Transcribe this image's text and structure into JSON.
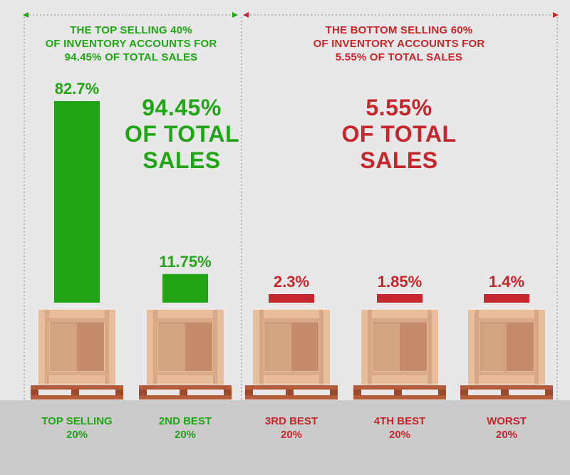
{
  "colors": {
    "good": "#21a517",
    "bad": "#c4272d",
    "crate_frame": "#e8bd9a",
    "crate_panel_light": "#d1a47f",
    "crate_panel_dark": "#c58b6b",
    "pallet": "#b45b3a",
    "background": "#e8e8e8",
    "floor": "#cbcbcb"
  },
  "header": {
    "left": [
      "THE TOP SELLING 40%",
      "OF INVENTORY ACCOUNTS FOR",
      "94.45% OF TOTAL SALES"
    ],
    "right": [
      "THE BOTTOM SELLING 60%",
      "OF INVENTORY ACCOUNTS FOR",
      "5.55% OF TOTAL SALES"
    ]
  },
  "callouts": {
    "left": [
      "94.45%",
      "OF TOTAL",
      "SALES"
    ],
    "right": [
      "5.55%",
      "OF TOTAL",
      "SALES"
    ]
  },
  "chart_data": {
    "type": "bar",
    "categories": [
      "TOP SELLING\n20%",
      "2ND BEST\n20%",
      "3RD BEST\n20%",
      "4TH BEST\n20%",
      "WORST\n20%"
    ],
    "category_lines": [
      [
        "TOP SELLING",
        "20%"
      ],
      [
        "2ND BEST",
        "20%"
      ],
      [
        "3RD BEST",
        "20%"
      ],
      [
        "4TH BEST",
        "20%"
      ],
      [
        "WORST",
        "20%"
      ]
    ],
    "values": [
      82.7,
      11.75,
      2.3,
      1.85,
      1.4
    ],
    "labels": [
      "82.7%",
      "11.75%",
      "2.3%",
      "1.85%",
      "1.4%"
    ],
    "groups": [
      "top",
      "top",
      "bottom",
      "bottom",
      "bottom"
    ],
    "ylim": [
      0,
      82.7
    ]
  }
}
